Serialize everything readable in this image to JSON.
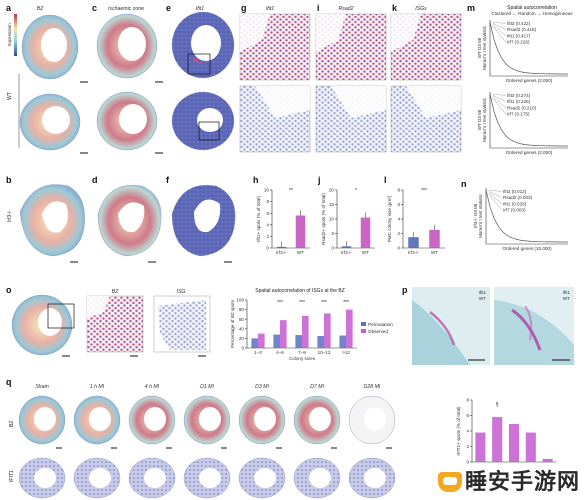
{
  "panels": {
    "a": {
      "label": "a",
      "title": "BZ",
      "colorbar_label": "Expression",
      "row_label": "WT"
    },
    "c": {
      "label": "c",
      "title": "Ischaemic zone"
    },
    "e": {
      "label": "e",
      "title": "Ifit1"
    },
    "g": {
      "label": "g",
      "title": "Ifit1"
    },
    "i": {
      "label": "i",
      "title": "Rsad2"
    },
    "k": {
      "label": "k",
      "title": "ISGs"
    },
    "m": {
      "label": "m",
      "title": "Spatial autocorrelation",
      "subtitle": "Clustered ← Random → Homogeneous",
      "top": {
        "ylabel": "WT D3 MI",
        "ylabel2": "Moran's I test statistic",
        "xlabel": "Ordered genes (2,000)",
        "entries": [
          "Ifit3 (0.422)",
          "Rsad2 (0.418)",
          "Ifit1 (0.417)",
          "Irf7 (0.226)"
        ]
      },
      "bottom": {
        "ylabel": "WT D3 MI",
        "ylabel2": "Moran's I test statistic",
        "xlabel": "Ordered genes (2,000)",
        "entries": [
          "Ifit3 (0.274)",
          "Ifit1 (0.226)",
          "Rsad2 (0.210)",
          "Irf7 (0.175)"
        ]
      }
    },
    "b": {
      "label": "b",
      "row_label": "Irf3-/-"
    },
    "d": {
      "label": "d"
    },
    "f": {
      "label": "f"
    },
    "h": {
      "label": "h",
      "ylabel": "Ifit1+ spots (% of total)",
      "sig": "**"
    },
    "j": {
      "label": "j",
      "ylabel": "Rsad2+ spots (% of total)",
      "sig": "*"
    },
    "l": {
      "label": "l",
      "ylabel": "PMC colony size (µm²)",
      "sig": "***"
    },
    "n": {
      "label": "n",
      "ylabel": "Irf3-/- D3 MI",
      "ylabel2": "Moran's I test statistic",
      "xlabel": "Ordered genes (10,000)",
      "entries": [
        "Ifit3 (0.012)",
        "Rsad2 (0.003)",
        "Ifit1 (0.028)",
        "Irf7 (0.003)"
      ]
    },
    "o": {
      "label": "o",
      "sub_titles": [
        "BZ",
        "ISG"
      ],
      "title": "Spatial autocorrelation of ISGs at the BZ"
    },
    "p": {
      "label": "p",
      "top_text": "Ifit1",
      "top_sub": "WT",
      "bottom_text": "Ifit1",
      "bottom_sub": "WT"
    },
    "q": {
      "label": "q",
      "row_label": "BZ",
      "row2_label": "IFIT1",
      "timepoints": [
        "Sham",
        "1 h MI",
        "4 h MI",
        "D1 MI",
        "D3 MI",
        "D7 MI",
        "D28 MI"
      ]
    },
    "r": {
      "ylabel": "IFIT1+ spots (% of total)",
      "sig": "§"
    }
  },
  "chart_data": [
    {
      "type": "bar",
      "panel": "h",
      "categories": [
        "Irf3-/-",
        "WT"
      ],
      "values": [
        0.2,
        5.6
      ],
      "ylim": [
        0,
        10
      ],
      "yticks": [
        "0",
        "2",
        "4",
        "6",
        "8",
        "10"
      ],
      "ylabel": "Ifit1+ spots (% of total)",
      "colors": [
        "#4a5fb0",
        "#c04ab8"
      ]
    },
    {
      "type": "bar",
      "panel": "j",
      "categories": [
        "Irf3-/-",
        "WT"
      ],
      "values": [
        0.6,
        10.5
      ],
      "ylim": [
        0,
        20
      ],
      "yticks": [
        "0",
        "5",
        "10",
        "15",
        "20"
      ],
      "ylabel": "Rsad2+ spots (% of total)",
      "colors": [
        "#4a5fb0",
        "#c04ab8"
      ]
    },
    {
      "type": "bar",
      "panel": "l",
      "categories": [
        "Irf3-/-",
        "WT"
      ],
      "values": [
        1.5,
        2.5
      ],
      "ylim": [
        0,
        8
      ],
      "yticks": [
        "0",
        "2",
        "4",
        "6",
        "8"
      ],
      "ylabel": "PMC colony size (µm²)",
      "colors": [
        "#4a5fb0",
        "#c04ab8"
      ]
    },
    {
      "type": "bar",
      "panel": "o",
      "title": "Spatial autocorrelation of ISGs at the BZ",
      "categories": [
        "1–3",
        "4–6",
        "7–9",
        "10–12",
        ">12"
      ],
      "xlabel": "Colony sizes",
      "ylabel": "Percentage of BZ spots",
      "ylim": [
        0,
        100
      ],
      "yticks": [
        "0",
        "20",
        "40",
        "60",
        "80",
        "100"
      ],
      "series": [
        {
          "name": "Permutation",
          "values": [
            20,
            28,
            27,
            25,
            26
          ],
          "color": "#5b6fc4"
        },
        {
          "name": "Observed",
          "values": [
            30,
            58,
            67,
            72,
            80
          ],
          "color": "#c45bd0"
        }
      ],
      "sig": [
        "",
        "***",
        "***",
        "***",
        "***"
      ],
      "legend": "right"
    },
    {
      "type": "bar",
      "panel": "r",
      "categories": [
        "Sham",
        "1 h MI",
        "4 h MI",
        "D1 MI",
        "D3 MI"
      ],
      "values": [
        3.8,
        5.8,
        4.9,
        3.8,
        0.4
      ],
      "ylim": [
        0,
        8
      ],
      "yticks": [
        "0",
        "2",
        "4",
        "6",
        "8"
      ],
      "ylabel": "IFIT1+ spots (% of total)",
      "color": "#c45bd0"
    }
  ],
  "watermark": "睡安手游网"
}
